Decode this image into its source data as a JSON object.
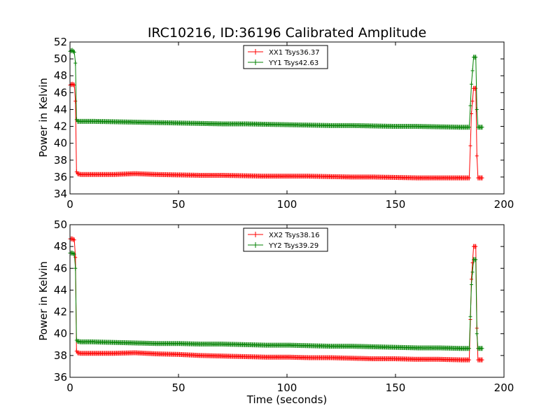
{
  "chart_data": [
    {
      "type": "line",
      "title": "IRC10216, ID:36196 Calibrated Amplitude",
      "xlabel": "",
      "ylabel": "Power in Kelvin",
      "xlim": [
        0,
        200
      ],
      "ylim": [
        34,
        52
      ],
      "xticks": [
        "0",
        "50",
        "100",
        "150",
        "200"
      ],
      "yticks": [
        "34",
        "36",
        "38",
        "40",
        "42",
        "44",
        "46",
        "48",
        "50",
        "52"
      ],
      "grid": false,
      "legend": "upper-center",
      "series": [
        {
          "name": "XX1 Tsys36.37",
          "color": "#ff0000",
          "x": [
            0,
            1,
            2,
            2.5,
            3,
            3.5,
            5,
            10,
            20,
            30,
            40,
            50,
            60,
            70,
            80,
            90,
            100,
            110,
            120,
            130,
            140,
            150,
            160,
            170,
            180,
            184,
            185,
            186,
            187,
            187.5,
            188,
            189,
            190
          ],
          "y": [
            46.9,
            47.0,
            46.9,
            45.0,
            36.6,
            36.4,
            36.3,
            36.3,
            36.3,
            36.4,
            36.3,
            36.25,
            36.2,
            36.2,
            36.15,
            36.1,
            36.1,
            36.1,
            36.05,
            36.0,
            36.0,
            35.95,
            35.9,
            35.9,
            35.9,
            35.9,
            43.5,
            46.5,
            46.5,
            38.5,
            35.9,
            35.9,
            35.9
          ]
        },
        {
          "name": "YY1 Tsys42.63",
          "color": "#008000",
          "x": [
            0,
            1,
            2,
            2.5,
            3,
            3.5,
            5,
            10,
            20,
            30,
            40,
            50,
            60,
            70,
            80,
            90,
            100,
            110,
            120,
            130,
            140,
            150,
            160,
            170,
            180,
            184,
            185,
            186,
            187,
            187.5,
            188,
            189,
            190
          ],
          "y": [
            50.9,
            51.0,
            50.8,
            49.5,
            42.8,
            42.6,
            42.6,
            42.6,
            42.55,
            42.5,
            42.45,
            42.4,
            42.35,
            42.3,
            42.3,
            42.25,
            42.2,
            42.15,
            42.1,
            42.1,
            42.05,
            42.0,
            42.0,
            41.95,
            41.9,
            41.9,
            47.0,
            50.2,
            50.2,
            44.0,
            41.9,
            41.9,
            41.9
          ]
        }
      ]
    },
    {
      "type": "line",
      "title": "",
      "xlabel": "Time (seconds)",
      "ylabel": "Power in Kelvin",
      "xlim": [
        0,
        200
      ],
      "ylim": [
        36,
        50
      ],
      "xticks": [
        "0",
        "50",
        "100",
        "150",
        "200"
      ],
      "yticks": [
        "36",
        "38",
        "40",
        "42",
        "44",
        "46",
        "48",
        "50"
      ],
      "grid": false,
      "legend": "upper-center",
      "series": [
        {
          "name": "XX2 Tsys38.16",
          "color": "#ff0000",
          "x": [
            0,
            1,
            2,
            2.5,
            3,
            3.5,
            5,
            10,
            20,
            30,
            40,
            50,
            60,
            70,
            80,
            90,
            100,
            110,
            120,
            130,
            140,
            150,
            160,
            170,
            180,
            184,
            185,
            186,
            187,
            187.5,
            188,
            189,
            190
          ],
          "y": [
            48.7,
            48.7,
            48.6,
            47.0,
            38.4,
            38.25,
            38.2,
            38.2,
            38.2,
            38.25,
            38.15,
            38.1,
            38.0,
            37.95,
            37.9,
            37.85,
            37.85,
            37.8,
            37.8,
            37.75,
            37.7,
            37.7,
            37.65,
            37.65,
            37.6,
            37.6,
            45.0,
            48.0,
            48.0,
            40.5,
            37.6,
            37.6,
            37.6
          ]
        },
        {
          "name": "YY2 Tsys39.29",
          "color": "#008000",
          "x": [
            0,
            1,
            2,
            2.5,
            3,
            3.5,
            5,
            10,
            20,
            30,
            40,
            50,
            60,
            70,
            80,
            90,
            100,
            110,
            120,
            130,
            140,
            150,
            160,
            170,
            180,
            184,
            185,
            186,
            187,
            187.5,
            188,
            189,
            190
          ],
          "y": [
            47.4,
            47.4,
            47.3,
            46.0,
            39.4,
            39.3,
            39.25,
            39.25,
            39.2,
            39.15,
            39.1,
            39.1,
            39.05,
            39.05,
            39.0,
            38.95,
            38.95,
            38.9,
            38.85,
            38.85,
            38.8,
            38.75,
            38.7,
            38.7,
            38.65,
            38.65,
            44.5,
            46.8,
            46.8,
            40.0,
            38.65,
            38.65,
            38.65
          ]
        }
      ]
    }
  ]
}
